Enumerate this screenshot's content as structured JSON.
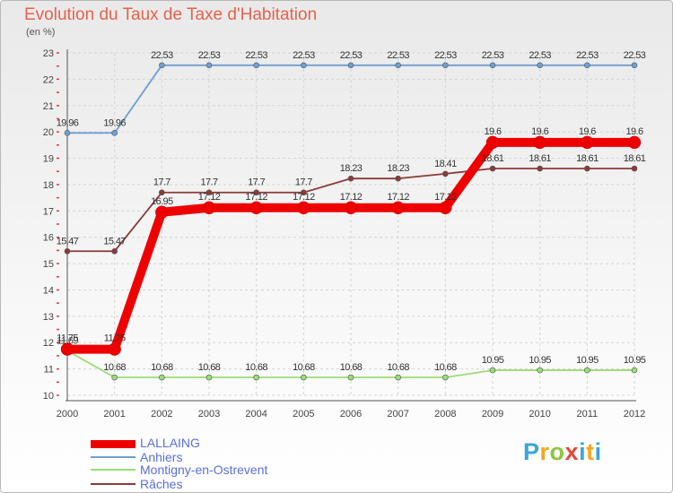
{
  "header": {
    "title": "Evolution du Taux de Taxe d'Habitation",
    "unit": "(en %)"
  },
  "chart_data": {
    "type": "line",
    "title": "Evolution du Taux de Taxe d'Habitation",
    "ylabel": "(en %)",
    "xlabel": "",
    "x": [
      "2000",
      "2001",
      "2002",
      "2003",
      "2004",
      "2005",
      "2006",
      "2007",
      "2008",
      "2009",
      "2010",
      "2011",
      "2012"
    ],
    "ylim": [
      10,
      23
    ],
    "yticks": [
      "10",
      "11",
      "12",
      "13",
      "14",
      "15",
      "16",
      "17",
      "18",
      "19",
      "20",
      "21",
      "22",
      "23"
    ],
    "grid": true,
    "legend_position": "bottom-left",
    "series": [
      {
        "name": "LALLAING",
        "color": "#ee0000",
        "values": [
          11.75,
          11.75,
          16.95,
          17.12,
          17.12,
          17.12,
          17.12,
          17.12,
          17.12,
          19.6,
          19.6,
          19.6,
          19.6
        ],
        "labels": [
          "11.75",
          "11.75",
          "16.95",
          "17.12",
          "17.12",
          "17.12",
          "17.12",
          "17.12",
          "17.12",
          "19.6",
          "19.6",
          "19.6",
          "19.6"
        ]
      },
      {
        "name": "Anhiers",
        "color": "#6e9fd0",
        "values": [
          19.96,
          19.96,
          22.53,
          22.53,
          22.53,
          22.53,
          22.53,
          22.53,
          22.53,
          22.53,
          22.53,
          22.53,
          22.53
        ],
        "labels": [
          "19.96",
          "19.96",
          "22.53",
          "22.53",
          "22.53",
          "22.53",
          "22.53",
          "22.53",
          "22.53",
          "22.53",
          "22.53",
          "22.53",
          "22.53"
        ]
      },
      {
        "name": "Montigny-en-Ostrevent",
        "color": "#99dd77",
        "values": [
          11.69,
          10.68,
          10.68,
          10.68,
          10.68,
          10.68,
          10.68,
          10.68,
          10.68,
          10.95,
          10.95,
          10.95,
          10.95
        ],
        "labels": [
          "11.69",
          "10.68",
          "10.68",
          "10.68",
          "10.68",
          "10.68",
          "10.68",
          "10.68",
          "10.68",
          "10.95",
          "10.95",
          "10.95",
          "10.95"
        ]
      },
      {
        "name": "Râches",
        "color": "#8b3a3a",
        "values": [
          15.47,
          15.47,
          17.7,
          17.7,
          17.7,
          17.7,
          18.23,
          18.23,
          18.41,
          18.61,
          18.61,
          18.61,
          18.61
        ],
        "labels": [
          "15.47",
          "15.47",
          "17.7",
          "17.7",
          "17.7",
          "17.7",
          "18.23",
          "18.23",
          "18.41",
          "18.61",
          "18.61",
          "18.61",
          "18.61"
        ]
      }
    ]
  },
  "logo": {
    "parts": [
      "P",
      "r",
      "o",
      "x",
      "i",
      "t",
      "i"
    ]
  }
}
